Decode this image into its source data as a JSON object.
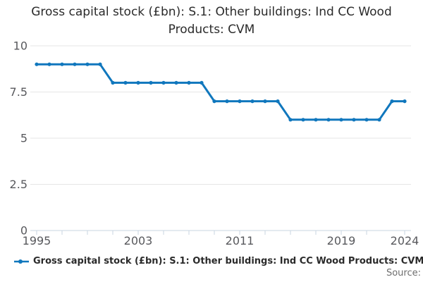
{
  "title": "Gross capital stock (£bn): S.1: Other buildings: Ind CC Wood Products: CVM",
  "source_label": "Source:",
  "legend": {
    "label": "Gross capital stock (£bn): S.1: Other buildings: Ind CC Wood Products: CVM",
    "marker": "line-with-dot"
  },
  "colors": {
    "series": "#1077bd",
    "grid": "#e6e6e6",
    "axis": "#c9d4e0",
    "tick_label": "#58595d",
    "title_text": "#2b2b2b",
    "legend_text": "#2b2b2b",
    "source_text": "#6e6e6e",
    "background": "#ffffff"
  },
  "chart_data": {
    "type": "line",
    "title": "Gross capital stock (£bn): S.1: Other buildings: Ind CC Wood Products: CVM",
    "series_name": "Gross capital stock (£bn): S.1: Other buildings: Ind CC Wood Products: CVM",
    "x": [
      1995,
      1996,
      1997,
      1998,
      1999,
      2000,
      2001,
      2002,
      2003,
      2004,
      2005,
      2006,
      2007,
      2008,
      2009,
      2010,
      2011,
      2012,
      2013,
      2014,
      2015,
      2016,
      2017,
      2018,
      2019,
      2020,
      2021,
      2022,
      2023,
      2024
    ],
    "values": [
      9,
      9,
      9,
      9,
      9,
      9,
      8,
      8,
      8,
      8,
      8,
      8,
      8,
      8,
      7,
      7,
      7,
      7,
      7,
      7,
      6,
      6,
      6,
      6,
      6,
      6,
      6,
      6,
      7,
      7
    ],
    "xlabel": "",
    "ylabel": "",
    "ylim": [
      0,
      10
    ],
    "yticks": [
      0,
      2.5,
      5,
      7.5,
      10
    ],
    "xticks_labeled": [
      1995,
      2003,
      2011,
      2019,
      2024
    ],
    "xticks_minor_step_years": 2,
    "grid": "horizontal",
    "marker": "circle",
    "legend_position": "bottom-left"
  }
}
